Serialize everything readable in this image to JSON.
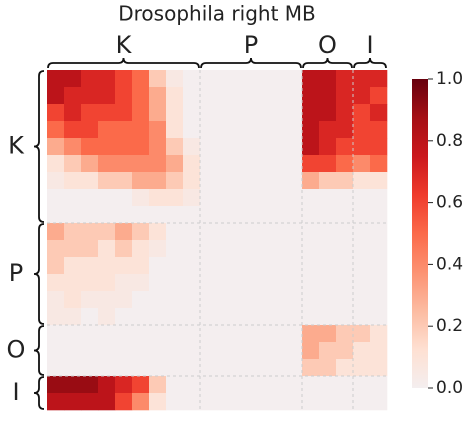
{
  "chart_data": {
    "type": "heatmap",
    "title": "Drosophila right MB",
    "x_groups": [
      "K",
      "P",
      "O",
      "I"
    ],
    "y_groups": [
      "K",
      "P",
      "O",
      "I"
    ],
    "values": [
      [
        0.8,
        0.8,
        0.7,
        0.7,
        0.6,
        0.5,
        0.2,
        0.05,
        0,
        0,
        0,
        0,
        0,
        0,
        0,
        0.8,
        0.8,
        0.7,
        0.7,
        0.7
      ],
      [
        0.8,
        0.7,
        0.7,
        0.7,
        0.6,
        0.5,
        0.3,
        0.1,
        0,
        0,
        0,
        0,
        0,
        0,
        0,
        0.8,
        0.8,
        0.7,
        0.7,
        0.6
      ],
      [
        0.6,
        0.7,
        0.6,
        0.6,
        0.6,
        0.5,
        0.3,
        0.1,
        0,
        0,
        0,
        0,
        0,
        0,
        0,
        0.8,
        0.8,
        0.7,
        0.6,
        0.7
      ],
      [
        0.5,
        0.6,
        0.6,
        0.5,
        0.5,
        0.5,
        0.4,
        0.1,
        0,
        0,
        0,
        0,
        0,
        0,
        0,
        0.8,
        0.7,
        0.7,
        0.6,
        0.6
      ],
      [
        0.3,
        0.4,
        0.5,
        0.5,
        0.5,
        0.5,
        0.4,
        0.2,
        0.05,
        0,
        0,
        0,
        0,
        0,
        0,
        0.8,
        0.7,
        0.6,
        0.6,
        0.6
      ],
      [
        0.1,
        0.2,
        0.3,
        0.4,
        0.4,
        0.4,
        0.4,
        0.3,
        0.1,
        0,
        0,
        0,
        0,
        0,
        0,
        0.6,
        0.6,
        0.5,
        0.4,
        0.5
      ],
      [
        0.05,
        0.1,
        0.1,
        0.2,
        0.2,
        0.3,
        0.3,
        0.2,
        0.1,
        0,
        0,
        0,
        0,
        0,
        0,
        0.3,
        0.2,
        0.2,
        0.1,
        0.1
      ],
      [
        0,
        0,
        0,
        0,
        0,
        0.05,
        0.1,
        0.1,
        0.05,
        0,
        0,
        0,
        0,
        0,
        0,
        0,
        0,
        0,
        0,
        0
      ],
      [
        0,
        0,
        0,
        0,
        0,
        0,
        0,
        0,
        0,
        0,
        0,
        0,
        0,
        0,
        0,
        0,
        0,
        0,
        0,
        0
      ],
      [
        0.3,
        0.2,
        0.2,
        0.2,
        0.3,
        0.2,
        0.1,
        0,
        0,
        0,
        0,
        0,
        0,
        0,
        0,
        0,
        0,
        0,
        0,
        0
      ],
      [
        0.2,
        0.2,
        0.2,
        0.1,
        0.2,
        0.1,
        0.05,
        0,
        0,
        0,
        0,
        0,
        0,
        0,
        0,
        0,
        0,
        0,
        0,
        0
      ],
      [
        0.2,
        0.1,
        0.1,
        0.1,
        0.1,
        0.1,
        0,
        0,
        0,
        0,
        0,
        0,
        0,
        0,
        0,
        0,
        0,
        0,
        0,
        0
      ],
      [
        0.1,
        0.1,
        0.1,
        0.1,
        0.05,
        0.05,
        0,
        0,
        0,
        0,
        0,
        0,
        0,
        0,
        0,
        0,
        0,
        0,
        0,
        0
      ],
      [
        0.05,
        0.1,
        0.05,
        0.05,
        0.05,
        0,
        0,
        0,
        0,
        0,
        0,
        0,
        0,
        0,
        0,
        0,
        0,
        0,
        0,
        0
      ],
      [
        0.05,
        0.05,
        0,
        0.05,
        0,
        0,
        0,
        0,
        0,
        0,
        0,
        0,
        0,
        0,
        0,
        0,
        0,
        0,
        0,
        0
      ],
      [
        0,
        0,
        0,
        0,
        0,
        0,
        0,
        0,
        0,
        0,
        0,
        0,
        0,
        0,
        0,
        0.3,
        0.3,
        0.2,
        0.2,
        0.1
      ],
      [
        0,
        0,
        0,
        0,
        0,
        0,
        0,
        0,
        0,
        0,
        0,
        0,
        0,
        0,
        0,
        0.3,
        0.2,
        0.2,
        0.1,
        0.1
      ],
      [
        0,
        0,
        0,
        0,
        0,
        0,
        0,
        0,
        0,
        0,
        0,
        0,
        0,
        0,
        0,
        0.2,
        0.2,
        0.1,
        0.1,
        0.1
      ],
      [
        0.9,
        0.9,
        0.9,
        0.8,
        0.7,
        0.6,
        0.2,
        0,
        0,
        0,
        0,
        0,
        0,
        0,
        0,
        0,
        0,
        0,
        0,
        0
      ],
      [
        0.8,
        0.8,
        0.8,
        0.8,
        0.6,
        0.4,
        0.1,
        0,
        0,
        0,
        0,
        0,
        0,
        0,
        0,
        0,
        0,
        0,
        0,
        0
      ]
    ],
    "colormap": [
      "#f4eeef",
      "#fee0d2",
      "#fcbba1",
      "#fc9272",
      "#fb6a4a",
      "#ef3b2c",
      "#cb181d",
      "#a50f15",
      "#67000d"
    ],
    "clim": [
      0,
      1
    ],
    "cticks": [
      {
        "value": 0,
        "label": "0.0"
      },
      0.2,
      0.4,
      0.6,
      0.8,
      {
        "value": 1,
        "label": "1.0"
      }
    ],
    "grid": true
  }
}
